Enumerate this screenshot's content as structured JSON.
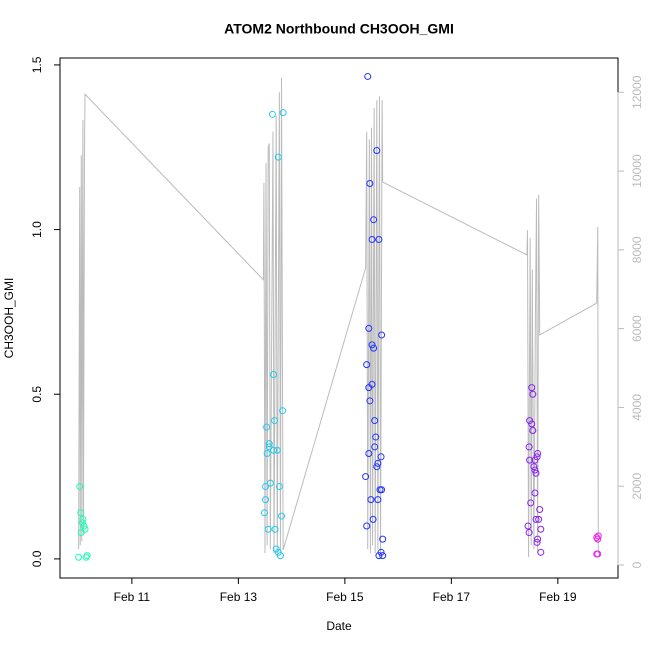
{
  "chart_data": {
    "type": "scatter",
    "title": "ATOM2 Northbound CH3OOH_GMI",
    "x_label": "Date",
    "y_label": "CH3OOH_GMI",
    "xlim": [
      9.65,
      20.13
    ],
    "xticks": [
      {
        "value": 11,
        "label": "Feb 11"
      },
      {
        "value": 13,
        "label": "Feb 13"
      },
      {
        "value": 15,
        "label": "Feb 15"
      },
      {
        "value": 17,
        "label": "Feb 17"
      },
      {
        "value": 19,
        "label": "Feb 19"
      }
    ],
    "ylim": [
      -0.058,
      1.521
    ],
    "yticks": [
      {
        "value": 0,
        "label": "0.0"
      },
      {
        "value": 0.5,
        "label": "0.5"
      },
      {
        "value": 1,
        "label": "1.0"
      },
      {
        "value": 1.5,
        "label": "1.5"
      }
    ],
    "y2lim": [
      -330,
      12870
    ],
    "y2ticks": [
      0,
      2000,
      4000,
      6000,
      8000,
      10000,
      12000
    ],
    "y2_color": "#bbbbbb",
    "series": [
      {
        "color": "#1affb0",
        "x": [
          10.0,
          10.02,
          10.04,
          10.05,
          10.07,
          10.08,
          10.1,
          10.12,
          10.14,
          10.16
        ],
        "values": [
          0.005,
          0.22,
          0.14,
          0.08,
          0.11,
          0.12,
          0.1,
          0.09,
          0.005,
          0.01
        ]
      },
      {
        "color": "#22ccee",
        "x": [
          13.64,
          13.84,
          13.75,
          13.66,
          13.83,
          13.68,
          13.53,
          13.58,
          13.58,
          13.66,
          13.54,
          13.73,
          13.6,
          13.51,
          13.77,
          13.51,
          13.49,
          13.81,
          13.56,
          13.69,
          13.71,
          13.75,
          13.79
        ],
        "values": [
          1.35,
          1.355,
          1.22,
          0.56,
          0.45,
          0.42,
          0.4,
          0.35,
          0.34,
          0.33,
          0.32,
          0.33,
          0.23,
          0.22,
          0.22,
          0.18,
          0.14,
          0.13,
          0.09,
          0.09,
          0.03,
          0.02,
          0.01
        ]
      },
      {
        "color": "#2233ff",
        "x": [
          15.43,
          15.6,
          15.47,
          15.54,
          15.51,
          15.64,
          15.45,
          15.69,
          15.51,
          15.54,
          15.41,
          15.51,
          15.45,
          15.47,
          15.56,
          15.58,
          15.56,
          15.45,
          15.68,
          15.62,
          15.6,
          15.39,
          15.66,
          15.69,
          15.49,
          15.62,
          15.53,
          15.41,
          15.71,
          15.68,
          15.64,
          15.71
        ],
        "values": [
          1.465,
          1.24,
          1.14,
          1.03,
          0.97,
          0.97,
          0.7,
          0.68,
          0.65,
          0.64,
          0.59,
          0.53,
          0.52,
          0.48,
          0.42,
          0.37,
          0.34,
          0.32,
          0.31,
          0.29,
          0.28,
          0.25,
          0.21,
          0.21,
          0.18,
          0.18,
          0.12,
          0.1,
          0.06,
          0.02,
          0.01,
          0.01
        ]
      },
      {
        "color": "#8a22ee",
        "x": [
          18.51,
          18.53,
          18.47,
          18.51,
          18.53,
          18.46,
          18.47,
          18.57,
          18.61,
          18.62,
          18.55,
          18.57,
          18.59,
          18.57,
          18.49,
          18.66,
          18.59,
          18.64,
          18.44,
          18.46,
          18.68,
          18.62,
          18.61,
          18.68
        ],
        "values": [
          0.52,
          0.5,
          0.42,
          0.41,
          0.39,
          0.34,
          0.3,
          0.3,
          0.31,
          0.32,
          0.28,
          0.27,
          0.26,
          0.2,
          0.17,
          0.15,
          0.12,
          0.12,
          0.1,
          0.08,
          0.09,
          0.06,
          0.05,
          0.02
        ]
      },
      {
        "color": "#ee22ee",
        "x": [
          19.73,
          19.75,
          19.76,
          19.73,
          19.75
        ],
        "values": [
          0.065,
          0.06,
          0.07,
          0.015,
          0.015
        ]
      },
      {
        "type": "line",
        "axis": "y2",
        "color": "#bbbbbb",
        "x": [
          10.0,
          10.02,
          10.03,
          10.05,
          10.06,
          10.08,
          10.09,
          10.11,
          10.12,
          13.47,
          13.48,
          13.5,
          13.52,
          13.54,
          13.56,
          13.58,
          13.6,
          13.65,
          13.67,
          13.71,
          13.73,
          13.77,
          13.79,
          13.81,
          13.84,
          15.39,
          15.41,
          15.43,
          15.46,
          15.48,
          15.5,
          15.52,
          15.55,
          15.57,
          15.6,
          15.62,
          15.65,
          15.67,
          15.7,
          15.71,
          18.42,
          18.43,
          18.45,
          18.48,
          18.5,
          18.52,
          18.55,
          18.58,
          18.6,
          18.62,
          18.64,
          18.66,
          19.73,
          19.75,
          19.76
        ],
        "values": [
          400,
          9600,
          500,
          10400,
          600,
          11300,
          800,
          10500,
          11950,
          7240,
          9700,
          300,
          10200,
          500,
          10600,
          10700,
          400,
          11000,
          300,
          11400,
          200,
          12000,
          300,
          12370,
          380,
          7540,
          11000,
          400,
          10800,
          300,
          11100,
          500,
          11600,
          300,
          11800,
          400,
          11900,
          300,
          11800,
          9720,
          7870,
          8500,
          200,
          8300,
          500,
          7500,
          400,
          6500,
          9300,
          300,
          9400,
          5840,
          6650,
          8580,
          300
        ]
      }
    ]
  }
}
